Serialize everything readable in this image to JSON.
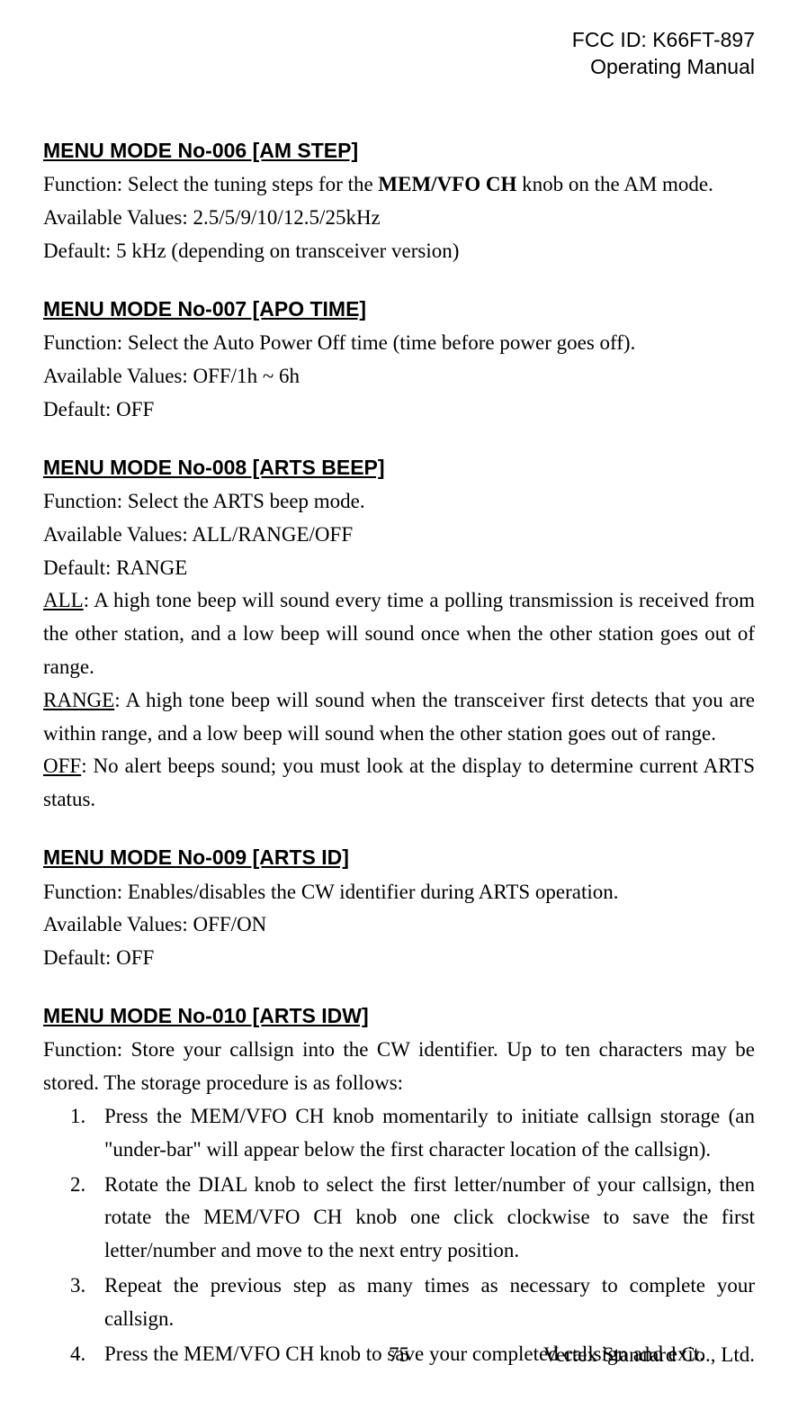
{
  "header": {
    "fcc": "FCC ID: K66FT-897",
    "subtitle": "Operating Manual"
  },
  "sections": {
    "s006": {
      "title": "MENU MODE No-006 [AM STEP]",
      "func_pre": "Function: Select the tuning steps for the ",
      "func_bold": "MEM/VFO CH",
      "func_post": " knob on the AM mode.",
      "avail": "Available Values: 2.5/5/9/10/12.5/25kHz",
      "def": "Default: 5 kHz (depending on transceiver version)"
    },
    "s007": {
      "title": "MENU MODE No-007 [APO TIME]",
      "func": "Function: Select the Auto Power Off time (time before power goes off).",
      "avail": "Available Values: OFF/1h ~ 6h",
      "def": "Default: OFF"
    },
    "s008": {
      "title": "MENU MODE No-008 [ARTS BEEP]",
      "func": "Function: Select the ARTS beep mode.",
      "avail": "Available Values: ALL/RANGE/OFF",
      "def": "Default: RANGE",
      "all_label": "ALL",
      "all_text": ": A high tone beep will sound every time a polling transmission is received from the other station, and a low beep will sound once when the other station goes out of range.",
      "range_label": "RANGE",
      "range_text": ": A high tone beep will sound when the transceiver first detects that you are within range, and a low beep will sound when the other station goes out of range.",
      "off_label": "OFF",
      "off_text": ": No alert beeps sound; you must look at the display to determine current ARTS status."
    },
    "s009": {
      "title": "MENU MODE No-009 [ARTS ID]",
      "func": "Function: Enables/disables the CW identifier during ARTS operation.",
      "avail": "Available Values: OFF/ON",
      "def": "Default: OFF"
    },
    "s010": {
      "title": "MENU MODE No-010 [ARTS IDW]",
      "func": "Function: Store your callsign into the CW identifier. Up to ten characters may be stored. The storage procedure is as follows:",
      "items": {
        "i1": {
          "num": "1.",
          "pre": "Press the ",
          "b1": "MEM/VFO CH",
          "post": " knob momentarily to initiate callsign storage (an \"under-bar\" will appear below the first character location of the callsign)."
        },
        "i2": {
          "num": "2.",
          "pre": "Rotate the ",
          "b1": "DIAL",
          "mid": " knob to select the first letter/number of your callsign, then rotate the ",
          "b2": "MEM/VFO CH",
          "post": " knob one click clockwise to save the first letter/number and move to the next entry position."
        },
        "i3": {
          "num": "3.",
          "txt": "Repeat the previous step as many times as necessary to complete your callsign."
        },
        "i4": {
          "num": "4.",
          "pre": "Press the ",
          "b1": "MEM/VFO CH",
          "post": " knob to save your completed callsign and exit."
        }
      }
    }
  },
  "footer": {
    "page": "75",
    "company": "Vertex Standard Co., Ltd."
  }
}
